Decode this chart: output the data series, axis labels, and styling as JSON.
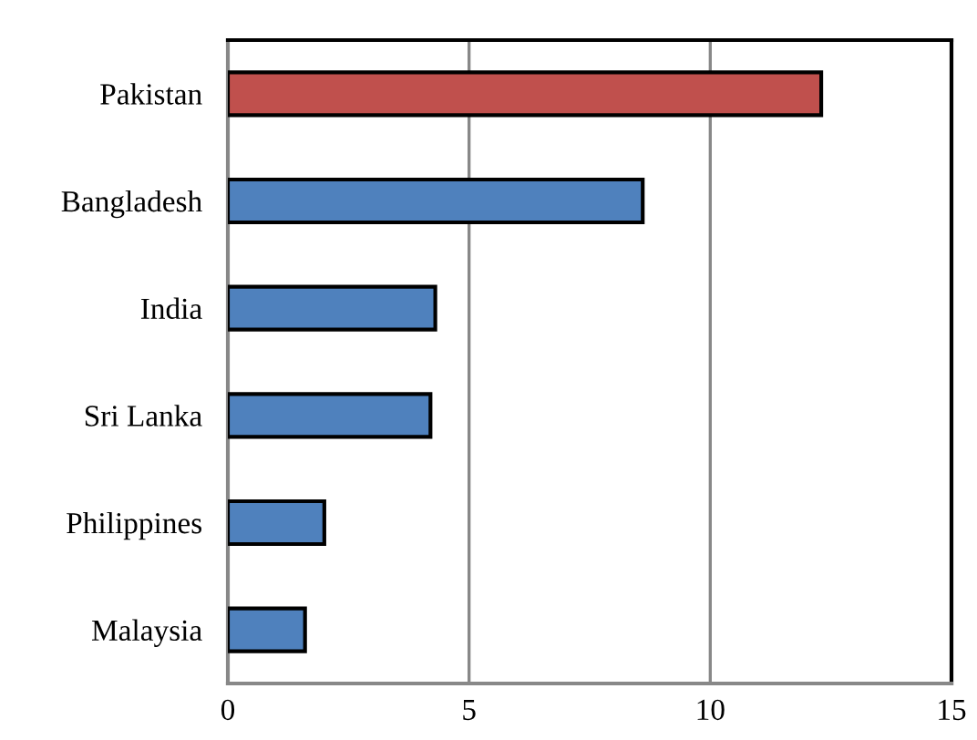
{
  "chart_data": {
    "type": "bar",
    "orientation": "horizontal",
    "categories": [
      "Pakistan",
      "Bangladesh",
      "India",
      "Sri Lanka",
      "Philippines",
      "Malaysia"
    ],
    "values": [
      12.3,
      8.6,
      4.3,
      4.2,
      2.0,
      1.6
    ],
    "colors": [
      "#c0504d",
      "#4f81bd",
      "#4f81bd",
      "#4f81bd",
      "#4f81bd",
      "#4f81bd"
    ],
    "xlim": [
      0,
      15
    ],
    "xticks": [
      0,
      5,
      10,
      15
    ],
    "grid": "x"
  }
}
